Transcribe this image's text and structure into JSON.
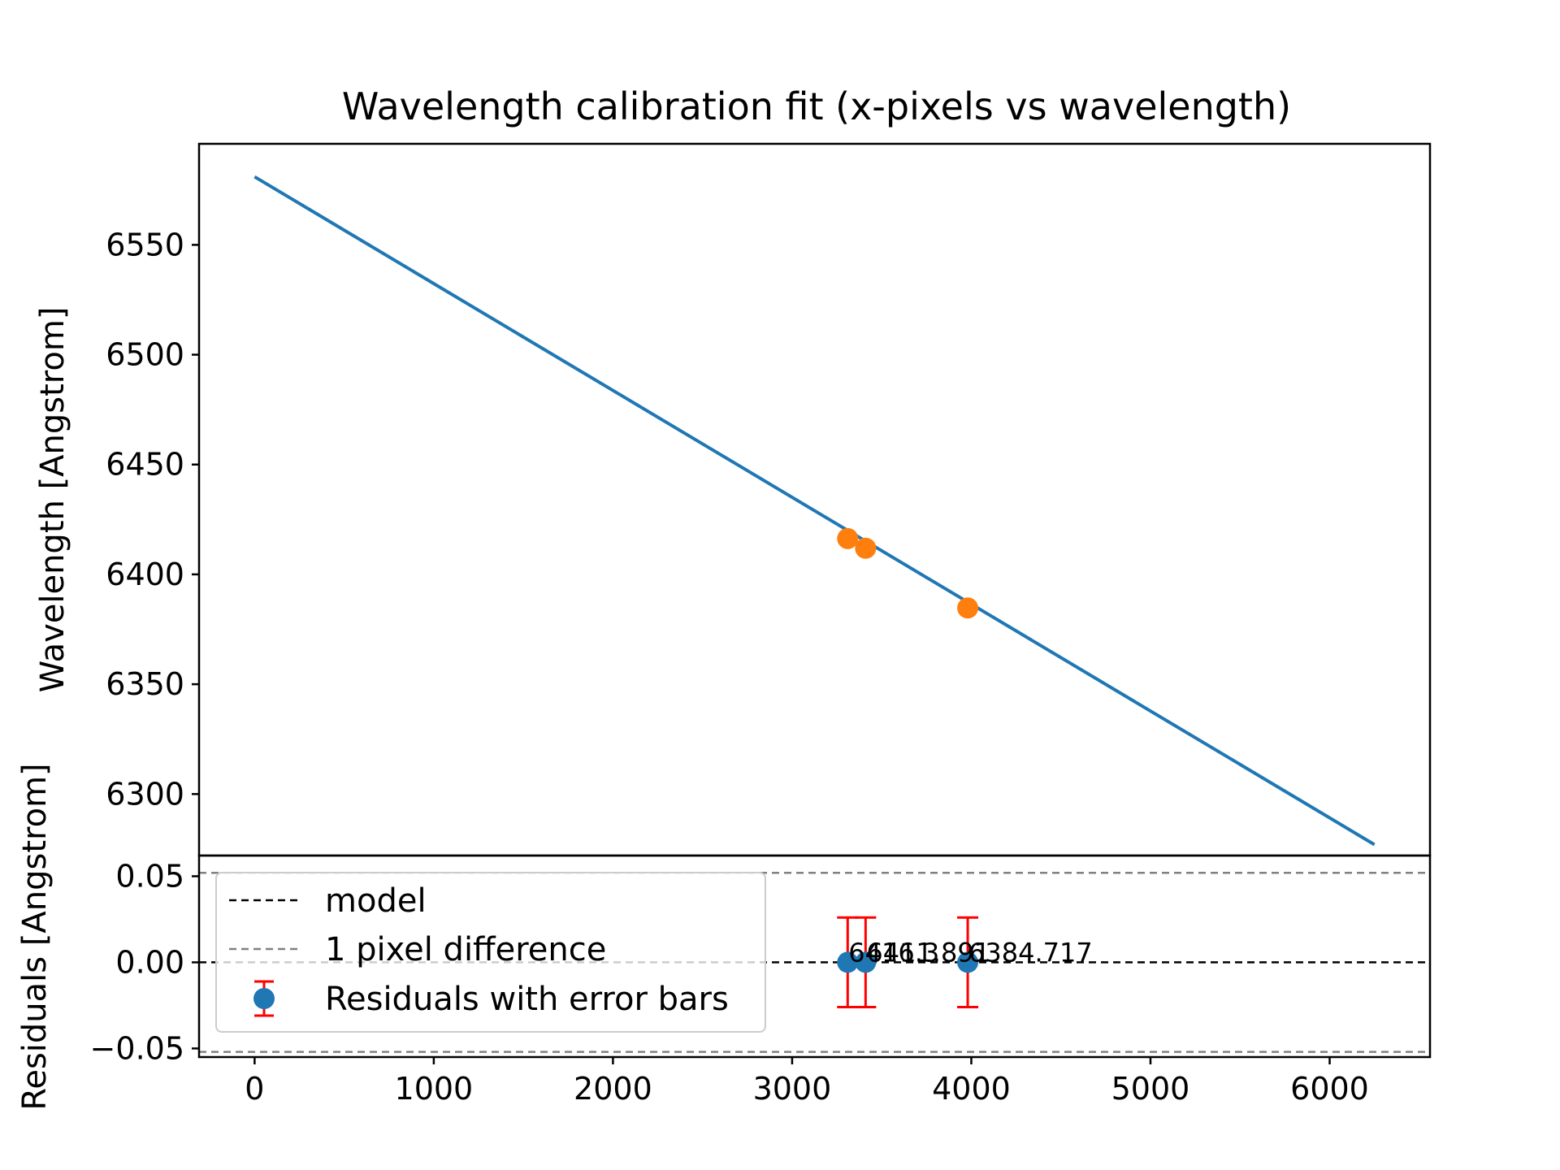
{
  "chart_data": [
    {
      "type": "line",
      "title": "Wavelength calibration fit (x-pixels vs wavelength)",
      "xlabel": "",
      "ylabel": "Wavelength [Angstrom]",
      "xlim": [
        -310,
        6560
      ],
      "ylim": [
        6272,
        6596
      ],
      "xticks": [
        "0",
        "1000",
        "2000",
        "3000",
        "4000",
        "5000",
        "6000"
      ],
      "yticks": [
        "6300",
        "6350",
        "6400",
        "6450",
        "6500",
        "6550"
      ],
      "grid": false,
      "series": [
        {
          "kind": "line",
          "color": "#1f77b4",
          "x": [
            0,
            6250
          ],
          "y": [
            6581,
            6277
          ]
        },
        {
          "kind": "scatter",
          "color": "#ff7f0e",
          "x": [
            3310,
            3410,
            3980
          ],
          "y": [
            6416.3,
            6411.9,
            6384.7
          ]
        }
      ]
    },
    {
      "type": "scatter",
      "title": "",
      "xlabel": "",
      "ylabel": "Residuals [Angstrom]",
      "xlim": [
        -310,
        6560
      ],
      "ylim": [
        -0.055,
        0.062
      ],
      "xticks": [
        "0",
        "1000",
        "2000",
        "3000",
        "4000",
        "5000",
        "6000"
      ],
      "yticks": [
        "−0.05",
        "0.00",
        "0.05"
      ],
      "grid": false,
      "legend_position": "upper-left",
      "lines": [
        {
          "name": "model",
          "style": "dashed",
          "color": "#000000",
          "y": 0
        },
        {
          "name": "1 pixel difference",
          "style": "dashed",
          "color": "#808080",
          "y": [
            0.052,
            -0.052
          ]
        }
      ],
      "series": [
        {
          "name": "Residuals with error bars",
          "color": "#1f77b4",
          "error_color": "#ff0000",
          "x": [
            3310,
            3410,
            3980
          ],
          "y": [
            0,
            0,
            0
          ],
          "yerr": [
            0.026,
            0.026,
            0.026
          ],
          "labels": [
            "6416.3",
            "6411.891",
            "6384.717"
          ]
        }
      ],
      "legend": [
        "model",
        "1 pixel difference",
        "Residuals with error bars"
      ]
    }
  ]
}
